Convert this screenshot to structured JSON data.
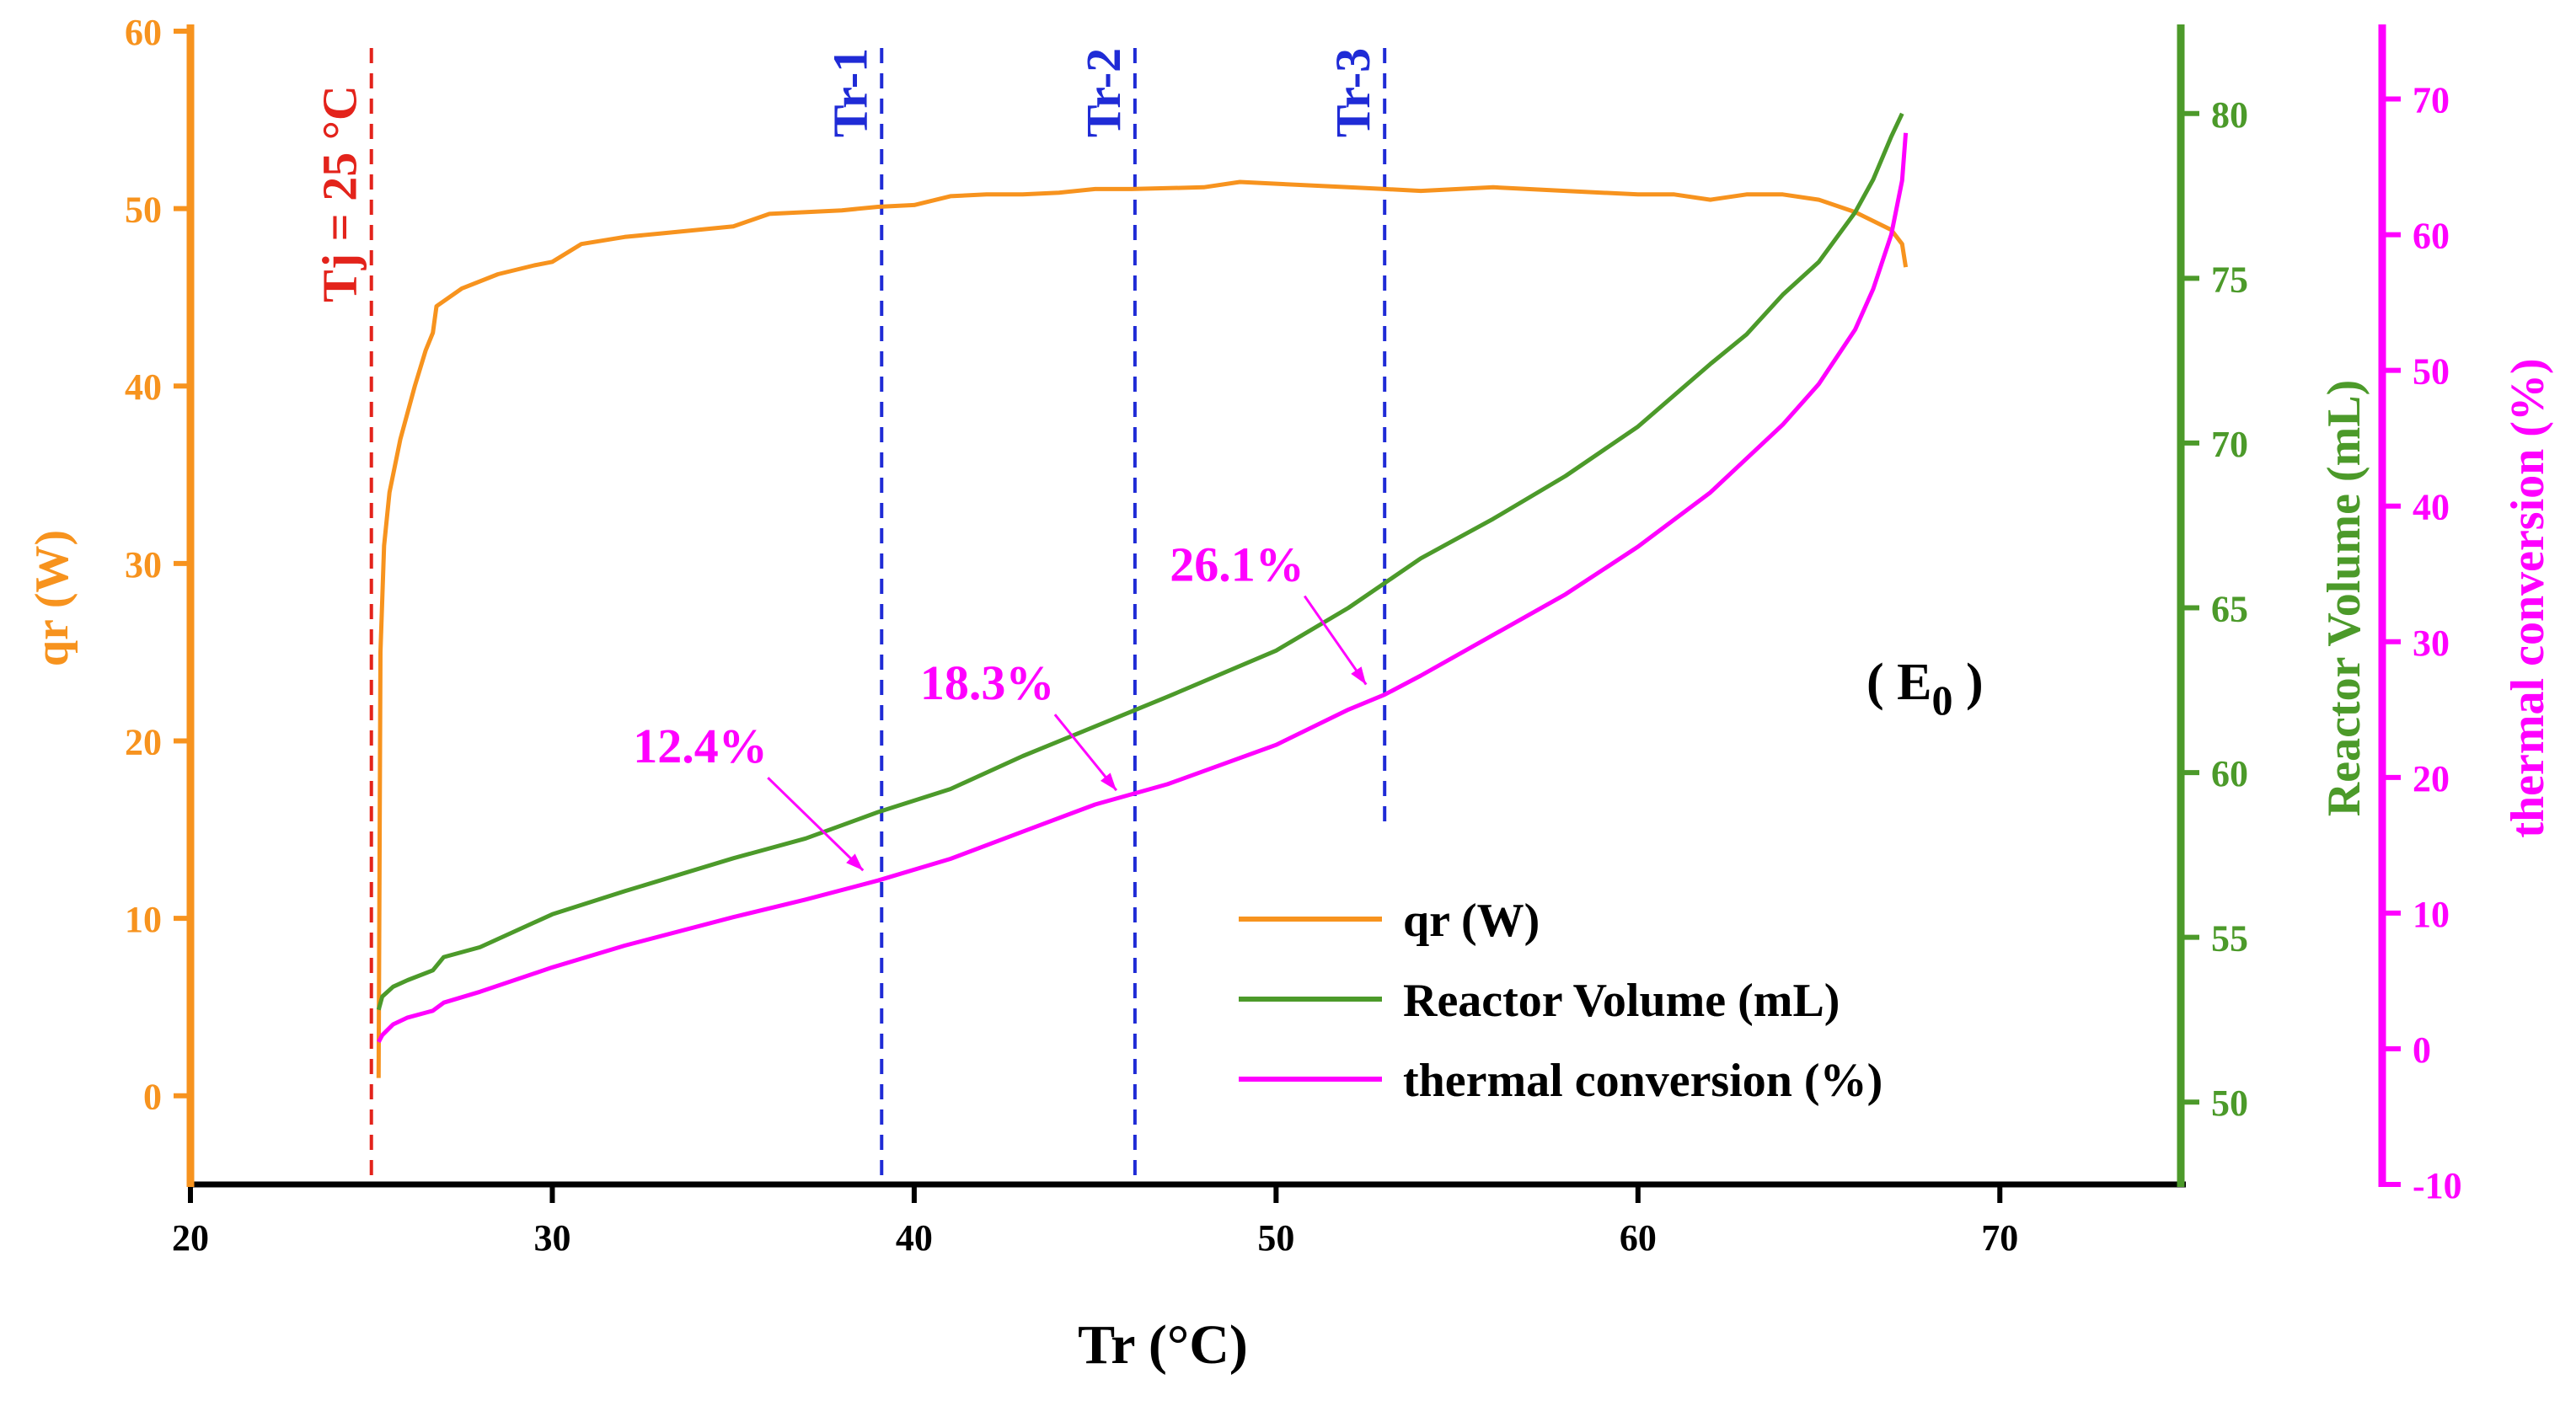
{
  "chart_data": {
    "type": "line",
    "xlabel": "Tr (°C)",
    "xlim": [
      20,
      75
    ],
    "x_ticks": [
      20,
      30,
      40,
      50,
      60,
      70
    ],
    "axes": {
      "left": {
        "label": "qr (W)",
        "lim": [
          -5,
          60
        ],
        "ticks": [
          0,
          10,
          20,
          30,
          40,
          50,
          60
        ],
        "color": "#f7931e"
      },
      "right1": {
        "label": "Reactor Volume (mL)",
        "lim": [
          47.5,
          82.5
        ],
        "ticks": [
          50,
          55,
          60,
          65,
          70,
          75,
          80
        ],
        "color": "#4c9a2a"
      },
      "right2": {
        "label": "thermal conversion (%)",
        "lim": [
          -10,
          75
        ],
        "ticks": [
          -10,
          0,
          10,
          20,
          30,
          40,
          50,
          60,
          70
        ],
        "color": "#ff00ff"
      }
    },
    "series": [
      {
        "name": "qr (W)",
        "axis": "left",
        "color": "#f7931e",
        "x": [
          25.2,
          25.25,
          25.35,
          25.5,
          25.8,
          26.2,
          26.5,
          26.7,
          26.8,
          27.5,
          28.5,
          29.5,
          30.0,
          30.8,
          32,
          33,
          35,
          36,
          38,
          39,
          40,
          41,
          42,
          43,
          44,
          45,
          46,
          48,
          49,
          50,
          52,
          53,
          54,
          56,
          58,
          60,
          61,
          62,
          63,
          64,
          65,
          66,
          67,
          67.3,
          67.4
        ],
        "y": [
          1,
          25,
          31,
          34,
          37,
          40,
          42,
          43,
          44.5,
          45.5,
          46.3,
          46.8,
          47,
          48,
          48.4,
          48.6,
          49.0,
          49.7,
          49.9,
          50.1,
          50.2,
          50.7,
          50.8,
          50.8,
          50.9,
          51.1,
          51.1,
          51.2,
          51.5,
          51.4,
          51.2,
          51.1,
          51.0,
          51.2,
          51.0,
          50.8,
          50.8,
          50.5,
          50.8,
          50.8,
          50.5,
          49.8,
          48.8,
          48.0,
          46.7
        ]
      },
      {
        "name": "Reactor Volume (mL)",
        "axis": "right1",
        "color": "#4c9a2a",
        "x": [
          25.2,
          25.3,
          25.6,
          26.0,
          26.7,
          27.0,
          28,
          30,
          32,
          35,
          37,
          39,
          41,
          43,
          45,
          47,
          50,
          52,
          54,
          56,
          58,
          60,
          62,
          63,
          64,
          65,
          66,
          66.5,
          67,
          67.3
        ],
        "y": [
          52.8,
          53.2,
          53.5,
          53.7,
          54.0,
          54.4,
          54.7,
          55.7,
          56.4,
          57.4,
          58.0,
          58.8,
          59.5,
          60.5,
          61.4,
          62.3,
          63.7,
          65.0,
          66.5,
          67.7,
          69.0,
          70.5,
          72.4,
          73.3,
          74.5,
          75.5,
          77.0,
          78.0,
          79.3,
          80.0
        ]
      },
      {
        "name": "thermal conversion (%)",
        "axis": "right2",
        "color": "#ff00ff",
        "x": [
          25.2,
          25.3,
          25.6,
          26.0,
          26.7,
          27.0,
          28,
          30,
          32,
          35,
          37,
          39,
          41,
          43,
          45,
          47,
          50,
          52,
          53,
          54,
          56,
          58,
          60,
          62,
          63,
          64,
          65,
          66,
          66.5,
          67,
          67.3,
          67.4
        ],
        "y": [
          0.5,
          1.0,
          1.8,
          2.3,
          2.8,
          3.4,
          4.2,
          6.0,
          7.6,
          9.7,
          11.0,
          12.4,
          14.0,
          16.0,
          18.0,
          19.5,
          22.4,
          25.0,
          26.1,
          27.5,
          30.5,
          33.5,
          37.0,
          41.0,
          43.5,
          46.0,
          49.0,
          53.0,
          56.0,
          60.0,
          64.0,
          67.5
        ]
      }
    ],
    "vertical_lines": [
      {
        "x": 25,
        "label": "Tj = 25 °C",
        "color": "#e3231b"
      },
      {
        "x": 39.1,
        "label": "Tr-1",
        "color": "#1f2bd6"
      },
      {
        "x": 46.1,
        "label": "Tr-2",
        "color": "#1f2bd6"
      },
      {
        "x": 53.0,
        "label": "Tr-3",
        "color": "#1f2bd6"
      }
    ],
    "annotations": [
      {
        "text": "12.4%",
        "x": 39.1,
        "y": 12.4,
        "axis": "right2",
        "color": "#ff00ff"
      },
      {
        "text": "18.3%",
        "x": 46.1,
        "y": 18.3,
        "axis": "right2",
        "color": "#ff00ff"
      },
      {
        "text": "26.1%",
        "x": 53.0,
        "y": 26.1,
        "axis": "right2",
        "color": "#ff00ff"
      }
    ],
    "panel_label": {
      "main": "( E",
      "sub": "0",
      "close": " )"
    },
    "legend_position": "bottom-right"
  }
}
